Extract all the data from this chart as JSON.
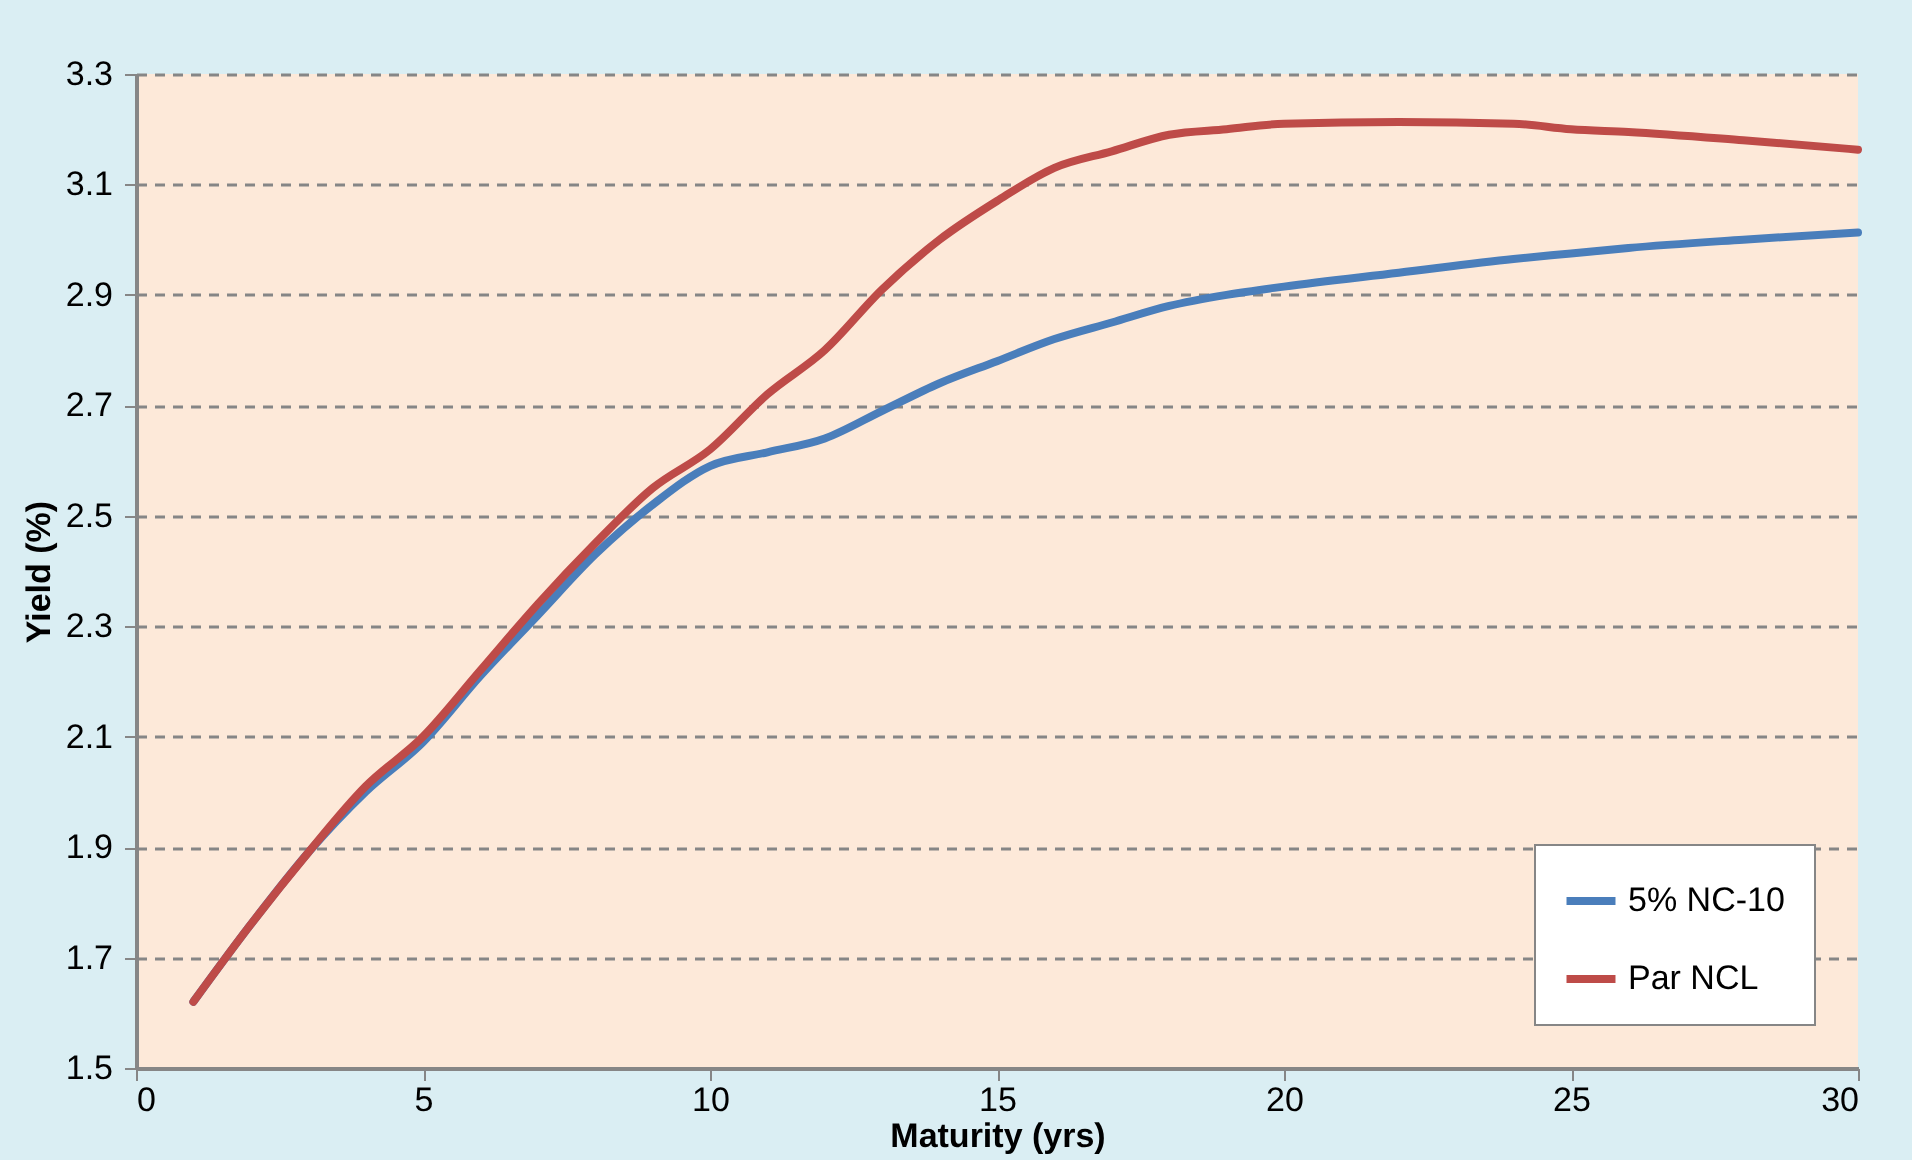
{
  "chart_data": {
    "type": "line",
    "xlabel": "Maturity (yrs)",
    "ylabel": "Yield (%)",
    "x": [
      1,
      2,
      3,
      4,
      5,
      6,
      7,
      8,
      9,
      10,
      11,
      12,
      13,
      14,
      15,
      16,
      17,
      18,
      19,
      20,
      22,
      24,
      25,
      26,
      28,
      30
    ],
    "series": [
      {
        "name": "5% NC-10",
        "color": "#4a7ebb",
        "values": [
          1.62,
          1.76,
          1.89,
          2.0,
          2.09,
          2.21,
          2.32,
          2.43,
          2.52,
          2.59,
          2.615,
          2.64,
          2.69,
          2.74,
          2.78,
          2.82,
          2.85,
          2.88,
          2.9,
          2.915,
          2.94,
          2.965,
          2.975,
          2.985,
          3.0,
          3.013
        ]
      },
      {
        "name": "Par NCL",
        "color": "#be4b48",
        "values": [
          1.62,
          1.76,
          1.89,
          2.01,
          2.1,
          2.22,
          2.34,
          2.45,
          2.55,
          2.62,
          2.72,
          2.8,
          2.91,
          3.0,
          3.07,
          3.13,
          3.16,
          3.19,
          3.2,
          3.21,
          3.213,
          3.21,
          3.2,
          3.195,
          3.18,
          3.163
        ]
      }
    ],
    "xlim": [
      0,
      30
    ],
    "xticks": [
      0,
      5,
      10,
      15,
      20,
      25,
      30
    ],
    "ylim": [
      1.5,
      3.3
    ],
    "yticks": [
      {
        "value": 1.5,
        "label": "1.5"
      },
      {
        "value": 1.7,
        "label": "1.7"
      },
      {
        "value": 1.9,
        "label": "1.9"
      },
      {
        "value": 2.1,
        "label": "2.1"
      },
      {
        "value": 2.3,
        "label": "2.3"
      },
      {
        "value": 2.5,
        "label": "2.5"
      },
      {
        "value": 2.7,
        "label": "2.7"
      },
      {
        "value": 2.9,
        "label": "2.9"
      },
      {
        "value": 3.1,
        "label": "3.1"
      },
      {
        "value": 3.3,
        "label": "3.3"
      }
    ],
    "grid": "y",
    "legend": "bottom right",
    "marker": "none",
    "line_style": "solid"
  }
}
